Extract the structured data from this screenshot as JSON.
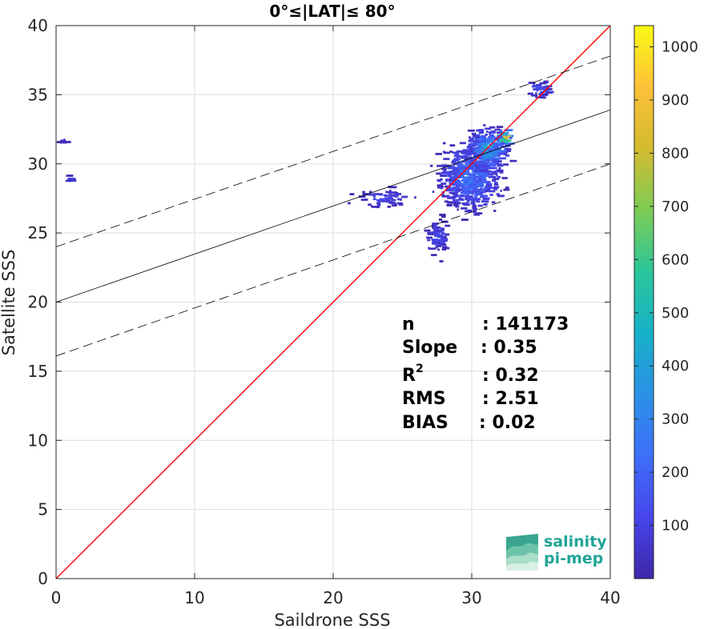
{
  "chart_data": {
    "type": "heatmap",
    "title": "0°≤|LAT|≤ 80°",
    "xlabel": "Saildrone SSS",
    "ylabel": "Satellite SSS",
    "xlim": [
      0,
      40
    ],
    "ylim": [
      0,
      40
    ],
    "xticks": [
      "0",
      "10",
      "20",
      "30",
      "40"
    ],
    "yticks": [
      "0",
      "5",
      "10",
      "15",
      "20",
      "25",
      "30",
      "35",
      "40"
    ],
    "grid": true,
    "colorbar": {
      "min": 0,
      "max": 1040,
      "ticks": [
        "100",
        "200",
        "300",
        "400",
        "500",
        "600",
        "700",
        "800",
        "900",
        "1000"
      ],
      "colors": [
        "#3e26a8",
        "#4746eb",
        "#3e6ff9",
        "#2a91e6",
        "#17b1c8",
        "#2bc69a",
        "#7ecc55",
        "#d4bb2f",
        "#fcc038",
        "#f9fb15"
      ]
    },
    "lines": [
      {
        "name": "1:1",
        "color": "#ff0000",
        "x": [
          0,
          40
        ],
        "y": [
          0,
          40
        ]
      },
      {
        "name": "fit",
        "color": "#000000",
        "x": [
          0,
          40
        ],
        "y": [
          20.0,
          33.9
        ]
      },
      {
        "name": "fit+2sd",
        "color": "#000000",
        "dash": true,
        "x": [
          0,
          40
        ],
        "y": [
          24.0,
          37.8
        ]
      },
      {
        "name": "fit-2sd",
        "color": "#000000",
        "dash": true,
        "x": [
          0,
          40
        ],
        "y": [
          16.1,
          30.0
        ]
      }
    ],
    "clusters": [
      {
        "x0": 26.5,
        "x1": 33.0,
        "y0": 25.5,
        "y1": 32.5,
        "count": 520,
        "peak": 300
      },
      {
        "x0": 29.0,
        "x1": 33.0,
        "y0": 29.0,
        "y1": 33.0,
        "count": 300,
        "peak": 500
      },
      {
        "x0": 31.5,
        "x1": 33.0,
        "y0": 31.0,
        "y1": 32.8,
        "count": 40,
        "peak": 1000
      },
      {
        "x0": 20.5,
        "x1": 26.5,
        "y0": 26.5,
        "y1": 28.5,
        "count": 60,
        "peak": 140
      },
      {
        "x0": 26.3,
        "x1": 28.5,
        "y0": 22.8,
        "y1": 26.5,
        "count": 70,
        "peak": 160
      },
      {
        "x0": 33.5,
        "x1": 36.0,
        "y0": 34.5,
        "y1": 36.2,
        "count": 45,
        "peak": 200
      },
      {
        "x0": 0.0,
        "x1": 2.0,
        "y0": 28.6,
        "y1": 29.2,
        "count": 12,
        "peak": 120
      },
      {
        "x0": 0.0,
        "x1": 0.8,
        "y0": 31.4,
        "y1": 32.0,
        "count": 6,
        "peak": 110
      }
    ],
    "stats": {
      "labels": [
        "n",
        "Slope",
        "R",
        "RMS",
        "BIAS"
      ],
      "superscript": "2",
      "values": [
        ": 141173",
        ": 0.35",
        ": 0.32",
        ": 2.51",
        ": 0.02"
      ]
    }
  },
  "logo": {
    "line1": "salinity",
    "line2": "pi-mep"
  }
}
